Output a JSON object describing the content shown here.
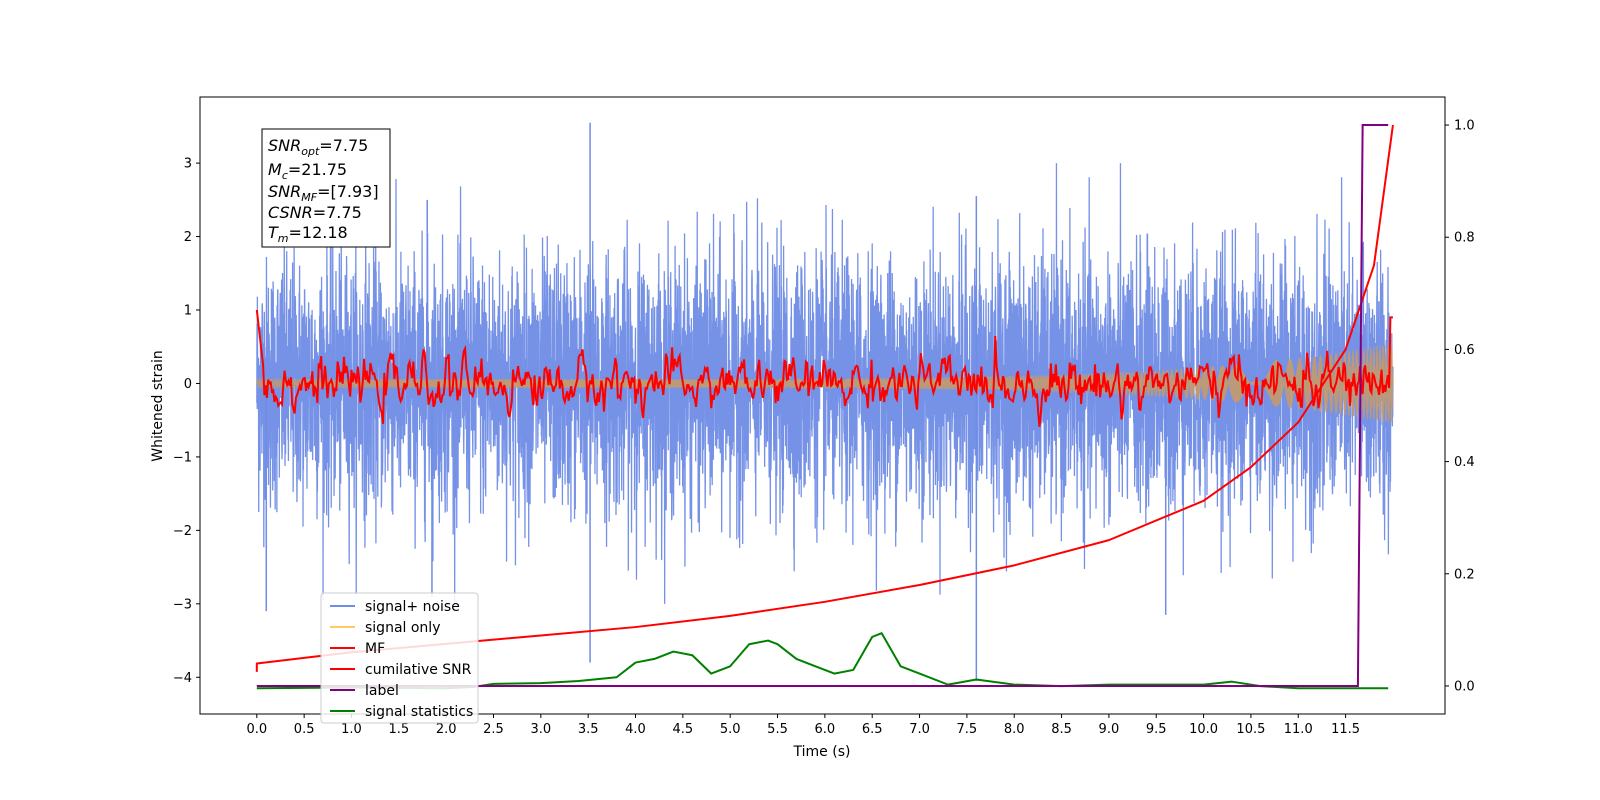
{
  "chart_data": {
    "type": "line",
    "xlabel": "Time (s)",
    "ylabel_left": "Whitened strain",
    "ylabel_right": "",
    "xlim": [
      -0.6,
      12.55
    ],
    "ylim_left": [
      -4.5,
      3.9
    ],
    "ylim_right": [
      -0.05,
      1.05
    ],
    "x_ticks": [
      0.0,
      0.5,
      1.0,
      1.5,
      2.0,
      2.5,
      3.0,
      3.5,
      4.0,
      4.5,
      5.0,
      5.5,
      6.0,
      6.5,
      7.0,
      7.5,
      8.0,
      8.5,
      9.0,
      9.5,
      10.0,
      10.5,
      11.0,
      11.5
    ],
    "x_tick_labels": [
      "0.0",
      "0.5",
      "1.0",
      "1.5",
      "2.0",
      "2.5",
      "3.0",
      "3.5",
      "4.0",
      "4.5",
      "5.0",
      "5.5",
      "6.0",
      "6.5",
      "7.0",
      "7.5",
      "8.0",
      "8.5",
      "9.0",
      "9.5",
      "10.0",
      "10.5",
      "11.0",
      "11.5"
    ],
    "y_left_ticks": [
      3,
      2,
      1,
      0,
      -1,
      -2,
      -3,
      -4
    ],
    "y_left_tick_labels": [
      "3",
      "2",
      "1",
      "0",
      "−1",
      "−2",
      "−3",
      "−4"
    ],
    "y_right_ticks": [
      1.0,
      0.8,
      0.6,
      0.4,
      0.2,
      0.0
    ],
    "y_right_tick_labels": [
      "1.0",
      "0.8",
      "0.6",
      "0.4",
      "0.2",
      "0.0"
    ],
    "legend_position": "lower-left",
    "grid": false,
    "series": [
      {
        "name": "signal+ noise",
        "color": "#6f8ce6",
        "axis": "left",
        "t_range": [
          0.0,
          12.0
        ],
        "std": 0.85,
        "spikes": [
          {
            "x": 0.1,
            "y": -3.1
          },
          {
            "x": 1.8,
            "y": 2.5
          },
          {
            "x": 1.85,
            "y": -2.9
          },
          {
            "x": 3.52,
            "y": 3.55
          },
          {
            "x": 3.52,
            "y": -3.8
          },
          {
            "x": 7.6,
            "y": -4.05
          },
          {
            "x": 9.6,
            "y": -3.15
          },
          {
            "x": 7.6,
            "y": 2.55
          }
        ]
      },
      {
        "name": "signal only",
        "color": "#ffc966",
        "axis": "left",
        "t_range": [
          0.0,
          12.0
        ],
        "amplitude_start": 0.06,
        "amplitude_end": 0.55
      },
      {
        "name": "MF",
        "color": "#ff0000",
        "axis": "left",
        "t_range": [
          0.0,
          12.0
        ],
        "amplitude": 0.14,
        "start_value": 1.0
      },
      {
        "name": "cumilative SNR",
        "color": "#ff0000",
        "axis": "right",
        "x": [
          0.0,
          0.5,
          1.0,
          2.0,
          3.0,
          4.0,
          5.0,
          6.0,
          7.0,
          8.0,
          9.0,
          10.0,
          10.5,
          11.0,
          11.5,
          11.8,
          12.0
        ],
        "y": [
          0.04,
          0.05,
          0.06,
          0.075,
          0.09,
          0.105,
          0.125,
          0.15,
          0.18,
          0.215,
          0.26,
          0.33,
          0.39,
          0.47,
          0.6,
          0.75,
          1.0
        ]
      },
      {
        "name": "label",
        "color": "#800080",
        "axis": "right",
        "x": [
          0.0,
          11.63,
          11.68,
          11.95
        ],
        "y": [
          0.0,
          0.0,
          1.0,
          1.0
        ]
      },
      {
        "name": "signal statistics",
        "color": "#008000",
        "axis": "left",
        "x": [
          0.0,
          1.0,
          2.0,
          2.3,
          2.5,
          3.0,
          3.4,
          3.8,
          4.0,
          4.2,
          4.4,
          4.6,
          4.8,
          5.0,
          5.2,
          5.4,
          5.5,
          5.7,
          5.9,
          6.1,
          6.3,
          6.5,
          6.6,
          6.8,
          7.0,
          7.3,
          7.6,
          8.0,
          8.5,
          9.0,
          9.5,
          10.0,
          10.3,
          10.6,
          11.0,
          11.5,
          11.95
        ],
        "y": [
          -4.15,
          -4.14,
          -4.15,
          -4.13,
          -4.09,
          -4.08,
          -4.05,
          -4.0,
          -3.8,
          -3.75,
          -3.65,
          -3.7,
          -3.95,
          -3.85,
          -3.55,
          -3.5,
          -3.55,
          -3.75,
          -3.85,
          -3.95,
          -3.9,
          -3.45,
          -3.4,
          -3.85,
          -3.95,
          -4.1,
          -4.03,
          -4.1,
          -4.12,
          -4.1,
          -4.1,
          -4.1,
          -4.06,
          -4.12,
          -4.15,
          -4.15,
          -4.15
        ]
      }
    ]
  },
  "infobox": {
    "snr_opt_main": "SNR",
    "snr_opt_sub": "opt",
    "snr_opt_val": "=7.75",
    "mc_main": "M",
    "mc_sub": "c",
    "mc_val": "=21.75",
    "snr_mf_main": "SNR",
    "snr_mf_sub": "MF",
    "snr_mf_val": "=[7.93]",
    "csnr_main": "CSNR",
    "csnr_val": "=7.75",
    "tm_main": "T",
    "tm_sub": "m",
    "tm_val": "=12.18"
  }
}
